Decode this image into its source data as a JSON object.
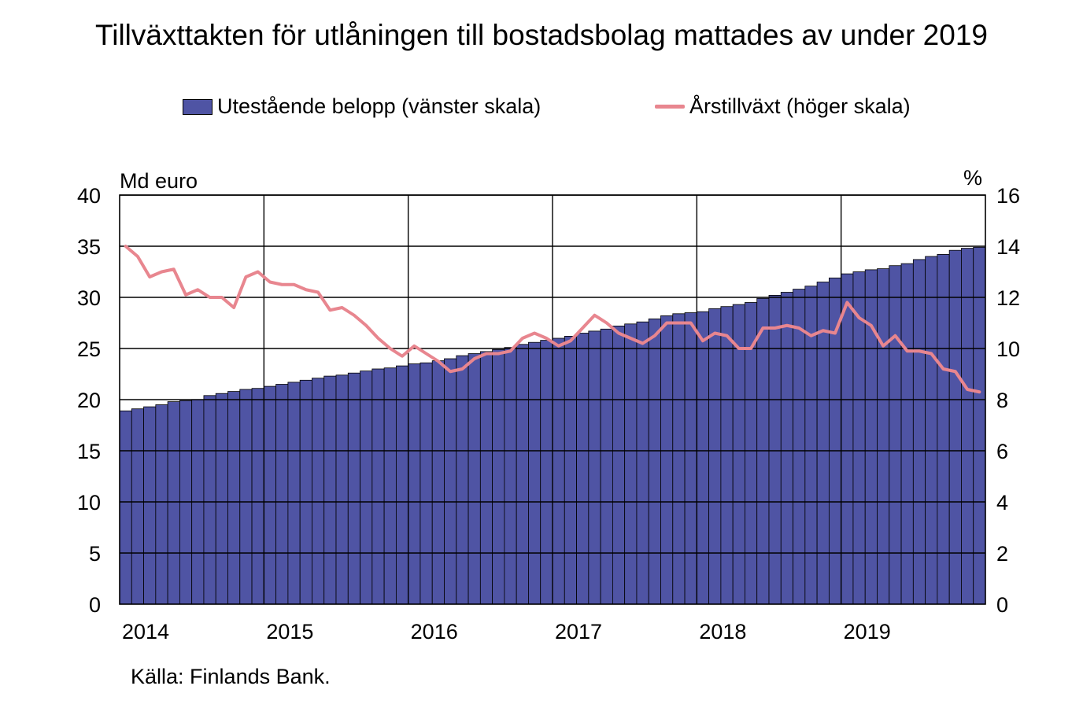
{
  "chart_data": {
    "type": "bar",
    "title": "Tillväxttakten för utlåningen till bostadsbolag mattades av under 2019",
    "left_axis_label": "Md euro",
    "right_axis_label": "%",
    "source": "Källa: Finlands Bank.",
    "legend_placement": "top",
    "grid": true,
    "x_tick_labels": [
      "2014",
      "2015",
      "2016",
      "2017",
      "2018",
      "2019"
    ],
    "left_ticks": [
      "0",
      "5",
      "10",
      "15",
      "20",
      "25",
      "30",
      "35",
      "40"
    ],
    "right_ticks": [
      "0",
      "2",
      "4",
      "6",
      "8",
      "10",
      "12",
      "14",
      "16"
    ],
    "ylim_left": [
      0,
      40
    ],
    "ylim_right": [
      0,
      16
    ],
    "series": [
      {
        "name": "Utestående belopp (vänster skala)",
        "type": "bar",
        "axis": "left",
        "color": "#4f54a4",
        "values": [
          18.9,
          19.1,
          19.3,
          19.5,
          19.8,
          19.9,
          20.0,
          20.4,
          20.6,
          20.8,
          21.0,
          21.1,
          21.3,
          21.5,
          21.7,
          21.9,
          22.1,
          22.3,
          22.4,
          22.6,
          22.8,
          23.0,
          23.1,
          23.3,
          23.5,
          23.6,
          23.8,
          24.0,
          24.3,
          24.5,
          24.7,
          24.9,
          25.1,
          25.4,
          25.6,
          25.8,
          26.0,
          26.2,
          26.5,
          26.7,
          26.9,
          27.2,
          27.4,
          27.6,
          27.9,
          28.2,
          28.4,
          28.5,
          28.6,
          28.9,
          29.1,
          29.3,
          29.5,
          29.9,
          30.2,
          30.5,
          30.8,
          31.1,
          31.5,
          31.9,
          32.3,
          32.5,
          32.7,
          32.8,
          33.1,
          33.3,
          33.7,
          34.0,
          34.2,
          34.6,
          34.8,
          34.9
        ]
      },
      {
        "name": "Årstillväxt (höger skala)",
        "type": "line",
        "axis": "right",
        "color": "#e8868f",
        "values": [
          14.0,
          13.6,
          12.8,
          13.0,
          13.1,
          12.1,
          12.3,
          12.0,
          12.0,
          11.6,
          12.8,
          13.0,
          12.6,
          12.5,
          12.5,
          12.3,
          12.2,
          11.5,
          11.6,
          11.3,
          10.9,
          10.4,
          10.0,
          9.7,
          10.1,
          9.8,
          9.5,
          9.1,
          9.2,
          9.6,
          9.8,
          9.8,
          9.9,
          10.4,
          10.6,
          10.4,
          10.1,
          10.3,
          10.8,
          11.3,
          11.0,
          10.6,
          10.4,
          10.2,
          10.5,
          11.0,
          11.0,
          11.0,
          10.3,
          10.6,
          10.5,
          10.0,
          10.0,
          10.8,
          10.8,
          10.9,
          10.8,
          10.5,
          10.7,
          10.6,
          11.8,
          11.2,
          10.9,
          10.1,
          10.5,
          9.9,
          9.9,
          9.8,
          9.2,
          9.1,
          8.4,
          8.3
        ]
      }
    ]
  }
}
